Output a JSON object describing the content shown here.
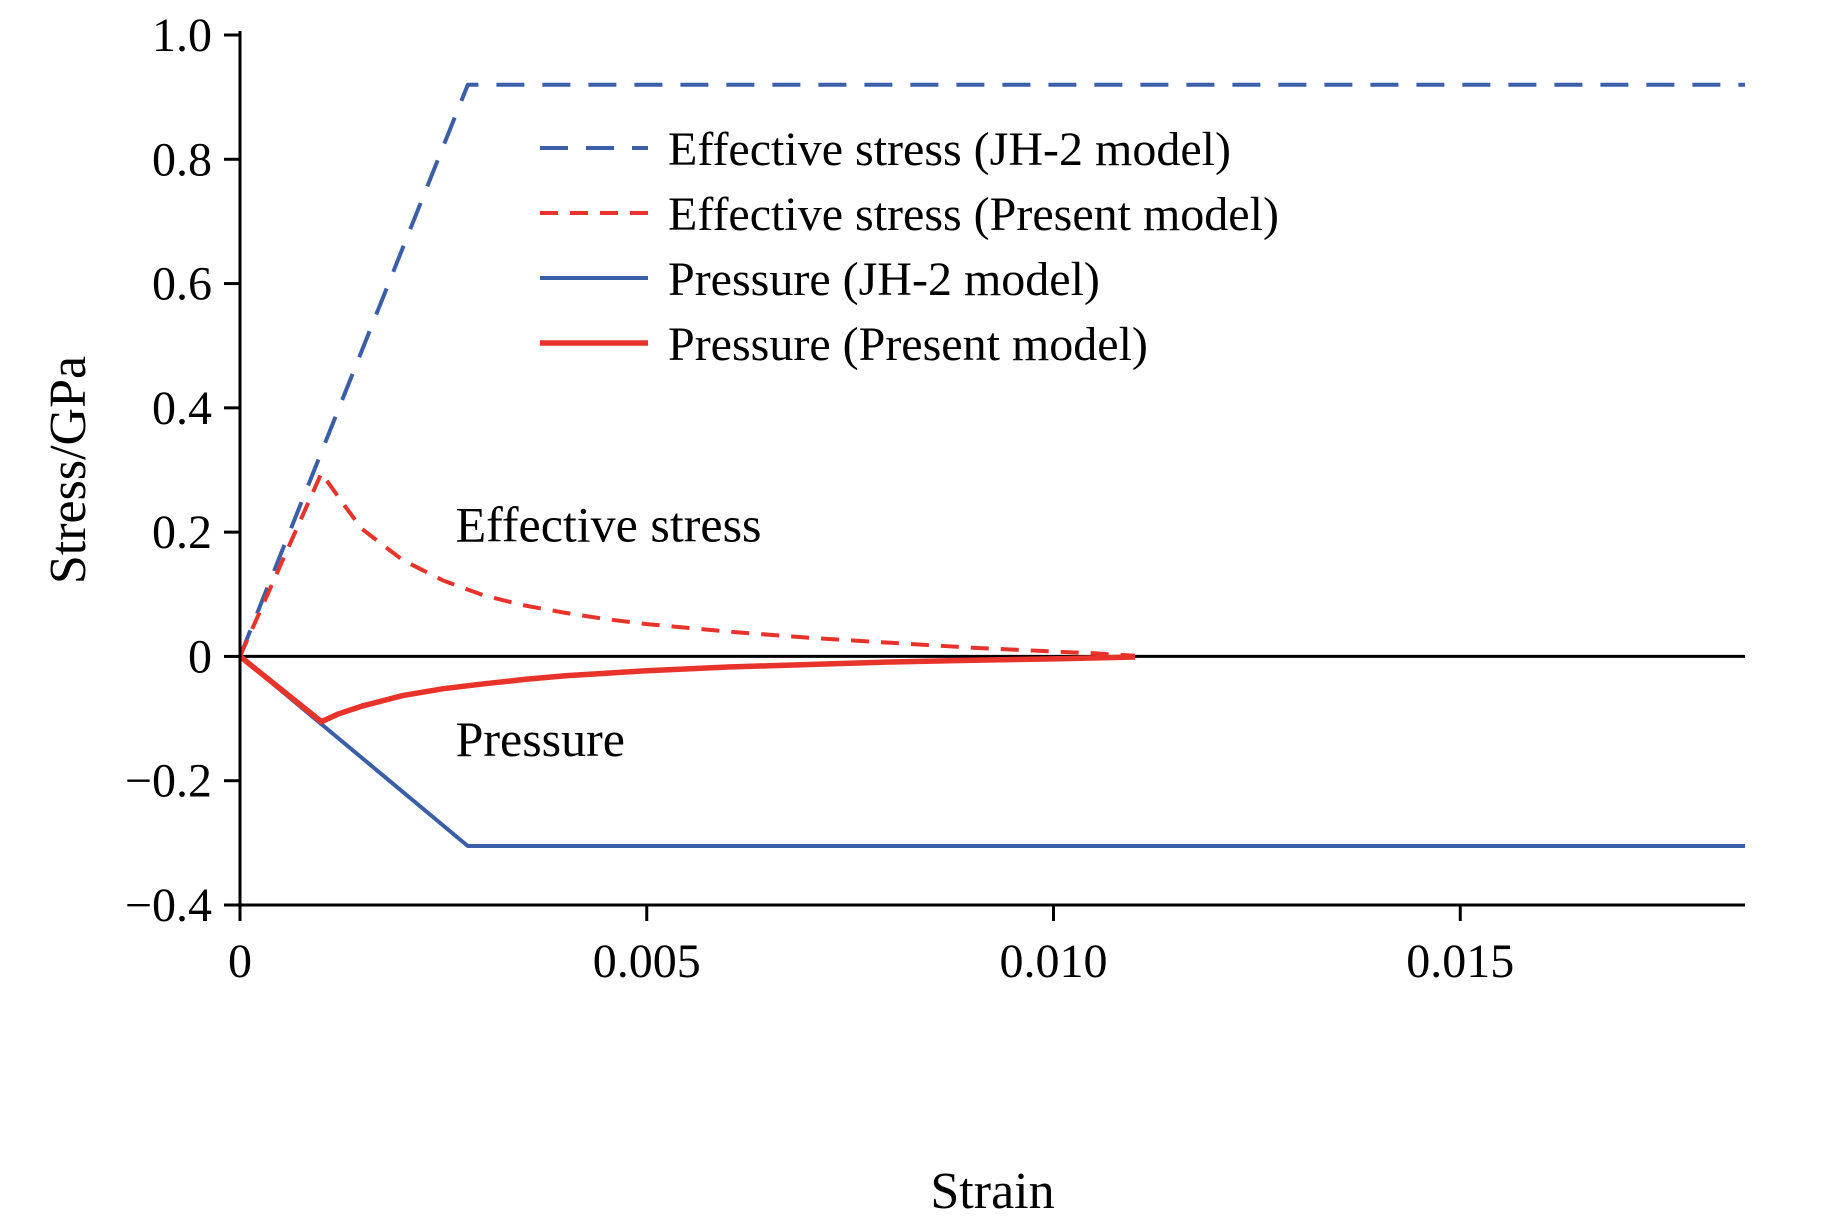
{
  "figure": {
    "background": "#ffffff"
  },
  "chart_data": {
    "type": "line",
    "title": "",
    "xlabel": "Strain",
    "ylabel": "Stress/GPa",
    "xlim": [
      0,
      0.0185
    ],
    "ylim": [
      -0.4,
      1.0
    ],
    "grid": false,
    "zero_line": true,
    "legend": {
      "position": "upper-center-inside",
      "border": false
    },
    "colors": {
      "blue": "#3a5fa8",
      "red": "#e8332b",
      "axis": "#000000"
    },
    "xticks": [
      {
        "v": 0,
        "label": "0"
      },
      {
        "v": 0.005,
        "label": "0.005"
      },
      {
        "v": 0.01,
        "label": "0.010"
      },
      {
        "v": 0.015,
        "label": "0.015"
      }
    ],
    "yticks": [
      {
        "v": -0.4,
        "label": "−0.4"
      },
      {
        "v": -0.2,
        "label": "−0.2"
      },
      {
        "v": 0,
        "label": "0"
      },
      {
        "v": 0.2,
        "label": "0.2"
      },
      {
        "v": 0.4,
        "label": "0.4"
      },
      {
        "v": 0.6,
        "label": "0.6"
      },
      {
        "v": 0.8,
        "label": "0.8"
      },
      {
        "v": 1.0,
        "label": "1.0"
      }
    ],
    "series": [
      {
        "name": "Effective stress (JH-2 model)",
        "color": "#3a5fa8",
        "line_style": "dashed",
        "dash": [
          28,
          18
        ],
        "width": 4,
        "points": [
          [
            0,
            0
          ],
          [
            0.0028,
            0.92
          ],
          [
            0.0185,
            0.92
          ]
        ]
      },
      {
        "name": "Effective stress (Present model)",
        "color": "#e8332b",
        "line_style": "dashed",
        "dash": [
          18,
          12
        ],
        "width": 4,
        "points": [
          [
            0,
            0
          ],
          [
            0.001,
            0.295
          ],
          [
            0.0013,
            0.24
          ],
          [
            0.0015,
            0.205
          ],
          [
            0.002,
            0.155
          ],
          [
            0.0025,
            0.122
          ],
          [
            0.003,
            0.098
          ],
          [
            0.0035,
            0.082
          ],
          [
            0.004,
            0.07
          ],
          [
            0.0045,
            0.06
          ],
          [
            0.005,
            0.052
          ],
          [
            0.006,
            0.04
          ],
          [
            0.007,
            0.03
          ],
          [
            0.008,
            0.022
          ],
          [
            0.009,
            0.014
          ],
          [
            0.0095,
            0.011
          ],
          [
            0.01,
            0.008
          ],
          [
            0.0105,
            0.005
          ],
          [
            0.011,
            0.001
          ]
        ]
      },
      {
        "name": "Pressure (JH-2 model)",
        "color": "#3a5fa8",
        "line_style": "solid",
        "width": 4,
        "points": [
          [
            0,
            0
          ],
          [
            0.0028,
            -0.305
          ],
          [
            0.0185,
            -0.305
          ]
        ]
      },
      {
        "name": "Pressure (Present model)",
        "color": "#e8332b",
        "line_style": "solid",
        "width": 5.5,
        "points": [
          [
            0,
            0
          ],
          [
            0.001,
            -0.105
          ],
          [
            0.0012,
            -0.093
          ],
          [
            0.0015,
            -0.08
          ],
          [
            0.002,
            -0.063
          ],
          [
            0.0025,
            -0.052
          ],
          [
            0.003,
            -0.044
          ],
          [
            0.0035,
            -0.037
          ],
          [
            0.004,
            -0.031
          ],
          [
            0.0045,
            -0.027
          ],
          [
            0.005,
            -0.023
          ],
          [
            0.006,
            -0.017
          ],
          [
            0.007,
            -0.013
          ],
          [
            0.008,
            -0.009
          ],
          [
            0.009,
            -0.006
          ],
          [
            0.01,
            -0.004
          ],
          [
            0.011,
            -0.001
          ]
        ]
      }
    ],
    "annotations": [
      {
        "text": "Effective stress",
        "x": 0.00265,
        "y": 0.185
      },
      {
        "text": "Pressure",
        "x": 0.00265,
        "y": -0.16
      }
    ]
  }
}
